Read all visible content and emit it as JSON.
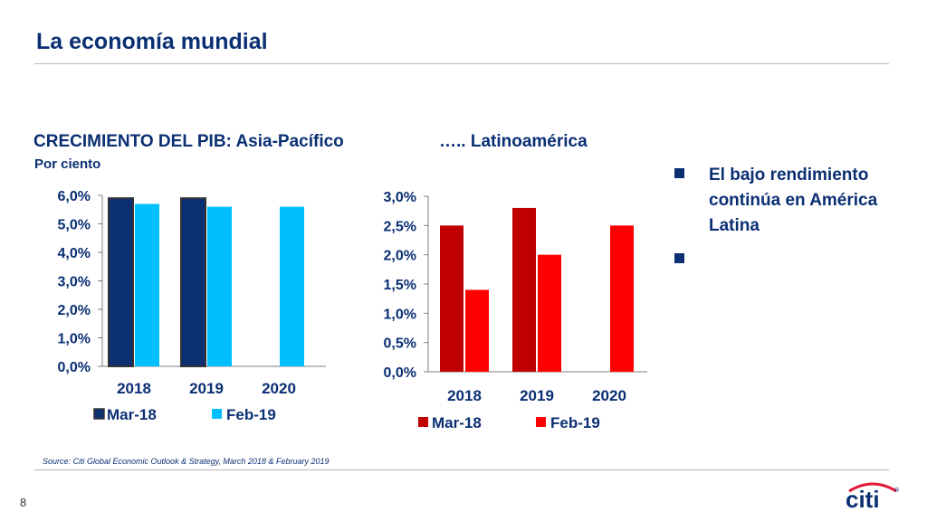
{
  "slide": {
    "title": "La economía mundial",
    "page_number": "8",
    "source": "Source: Citi Global Economic Outlook & Strategy, March 2018 & February 2019",
    "logo_text": "citi",
    "logo_mark": "®"
  },
  "left_header": {
    "title": "CRECIMIENTO DEL PIB: Asia-Pacífico",
    "subtitle": "Por ciento"
  },
  "right_header": {
    "title": "….. Latinoamérica"
  },
  "bullets": [
    {
      "text": "El bajo rendimiento continúa en América Latina"
    },
    {
      "text": ""
    }
  ],
  "colors": {
    "brand_navy": "#0a2f73",
    "asia_mar18": "#0a2f73",
    "asia_feb19": "#00bfff",
    "latam_mar18": "#c00000",
    "latam_feb19": "#ff0000"
  },
  "chart_data": [
    {
      "type": "bar",
      "categories": [
        "2018",
        "2019",
        "2020"
      ],
      "series": [
        {
          "name": "Mar-18",
          "values": [
            5.9,
            5.9,
            null
          ]
        },
        {
          "name": "Feb-19",
          "values": [
            5.7,
            5.6,
            5.6
          ]
        }
      ],
      "ylim": [
        0,
        6
      ],
      "yticks": [
        "0,0%",
        "1,0%",
        "2,0%",
        "3,0%",
        "4,0%",
        "5,0%",
        "6,0%"
      ],
      "legend": "bottom"
    },
    {
      "type": "bar",
      "categories": [
        "2018",
        "2019",
        "2020"
      ],
      "series": [
        {
          "name": "Mar-18",
          "values": [
            2.5,
            2.8,
            null
          ]
        },
        {
          "name": "Feb-19",
          "values": [
            1.4,
            2.0,
            2.5
          ]
        }
      ],
      "ylim": [
        0,
        3
      ],
      "yticks": [
        "0,0%",
        "0,5%",
        "1,0%",
        "1,5%",
        "2,0%",
        "2,5%",
        "3,0%"
      ],
      "legend": "bottom"
    }
  ]
}
